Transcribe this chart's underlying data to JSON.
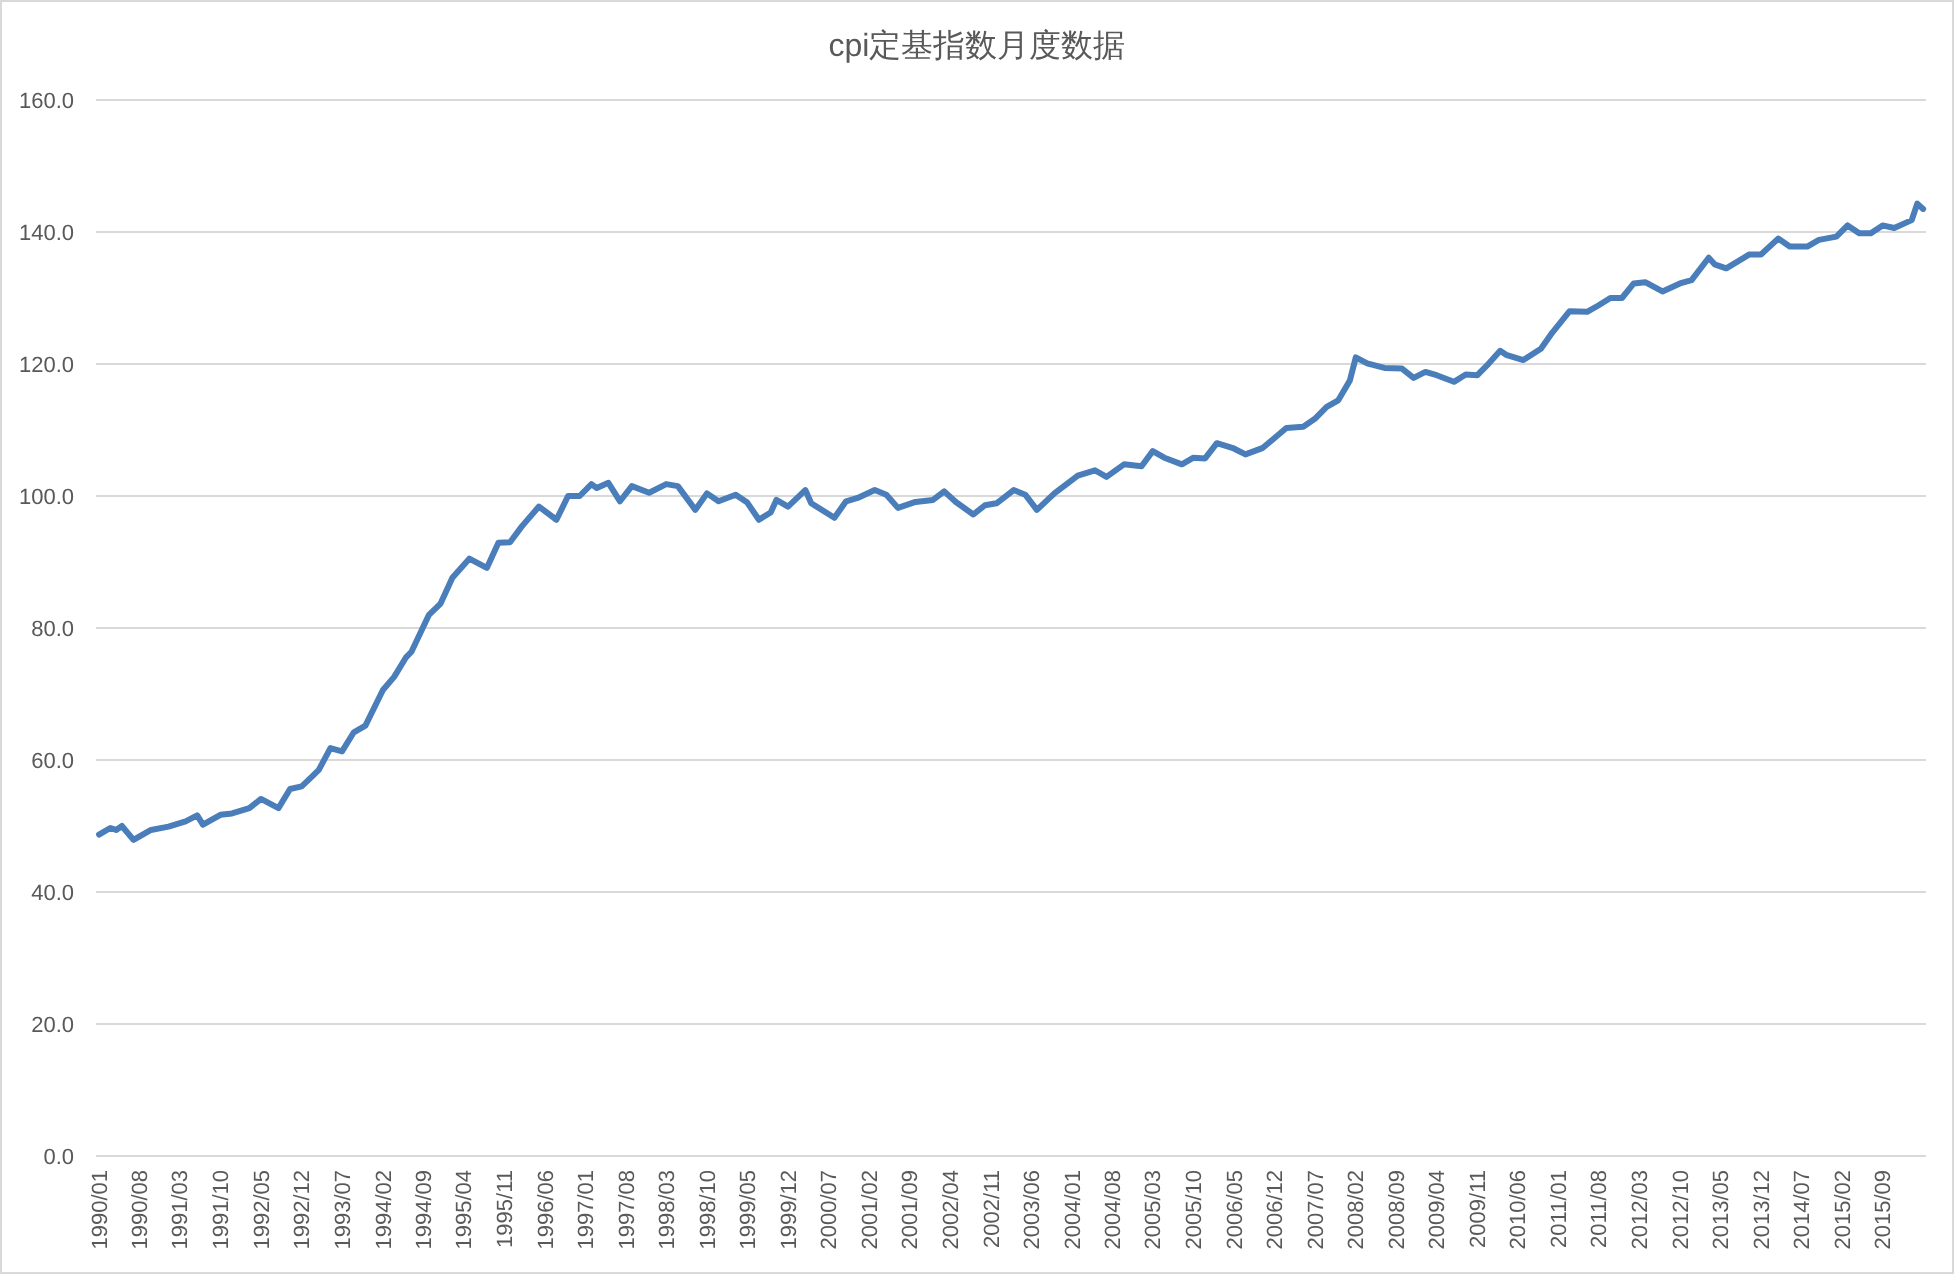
{
  "chart_data": {
    "type": "line",
    "title": "cpi定基指数月度数据",
    "x": [
      "1990-01",
      "1990-03",
      "1990-04",
      "1990-05",
      "1990-07",
      "1990-10",
      "1991-01",
      "1991-04",
      "1991-06",
      "1991-07",
      "1991-10",
      "1991-12",
      "1992-03",
      "1992-05",
      "1992-08",
      "1992-10",
      "1992-12",
      "1993-02",
      "1993-03",
      "1993-05",
      "1993-07",
      "1993-09",
      "1993-11",
      "1994-02",
      "1994-04",
      "1994-06",
      "1994-07",
      "1994-10",
      "1994-12",
      "1995-02",
      "1995-05",
      "1995-08",
      "1995-10",
      "1995-12",
      "1996-02",
      "1996-05",
      "1996-08",
      "1996-10",
      "1996-12",
      "1997-02",
      "1997-03",
      "1997-05",
      "1997-07",
      "1997-09",
      "1997-12",
      "1998-03",
      "1998-05",
      "1998-08",
      "1998-10",
      "1998-12",
      "1999-03",
      "1999-05",
      "1999-07",
      "1999-09",
      "1999-10",
      "1999-12",
      "2000-03",
      "2000-04",
      "2000-08",
      "2000-10",
      "2000-12",
      "2001-03",
      "2001-05",
      "2001-07",
      "2001-10",
      "2002-01",
      "2002-03",
      "2002-05",
      "2002-08",
      "2002-10",
      "2002-12",
      "2003-03",
      "2003-05",
      "2003-07",
      "2003-10",
      "2004-02",
      "2004-05",
      "2004-07",
      "2004-10",
      "2005-01",
      "2005-03",
      "2005-05",
      "2005-08",
      "2005-10",
      "2005-12",
      "2006-02",
      "2006-05",
      "2006-07",
      "2006-10",
      "2007-02",
      "2007-05",
      "2007-07",
      "2007-09",
      "2007-11",
      "2008-01",
      "2008-02",
      "2008-04",
      "2008-07",
      "2008-10",
      "2008-12",
      "2009-02",
      "2009-04",
      "2009-07",
      "2009-09",
      "2009-11",
      "2010-01",
      "2010-03",
      "2010-04",
      "2010-07",
      "2010-10",
      "2010-12",
      "2011-03",
      "2011-06",
      "2011-08",
      "2011-10",
      "2011-12",
      "2012-02",
      "2012-04",
      "2012-07",
      "2012-10",
      "2012-12",
      "2013-03",
      "2013-04",
      "2013-06",
      "2013-10",
      "2013-12",
      "2014-03",
      "2014-05",
      "2014-08",
      "2014-10",
      "2015-01",
      "2015-03",
      "2015-05",
      "2015-07",
      "2015-09",
      "2015-11",
      "2016-02",
      "2016-03",
      "2016-04"
    ],
    "series": [
      {
        "color": "#4a7ebb",
        "values": [
          48.7,
          49.7,
          49.4,
          50.0,
          47.9,
          49.4,
          49.9,
          50.7,
          51.6,
          50.2,
          51.7,
          51.9,
          52.7,
          54.1,
          52.7,
          55.6,
          56.0,
          57.7,
          58.5,
          61.8,
          61.3,
          64.2,
          65.2,
          70.6,
          72.6,
          75.5,
          76.4,
          82.0,
          83.7,
          87.6,
          90.5,
          89.1,
          92.9,
          93.0,
          95.4,
          98.4,
          96.4,
          100.0,
          100.0,
          101.8,
          101.2,
          102.0,
          99.2,
          101.5,
          100.5,
          101.8,
          101.5,
          97.9,
          100.4,
          99.2,
          100.2,
          99.0,
          96.4,
          97.5,
          99.4,
          98.4,
          100.9,
          98.9,
          96.7,
          99.2,
          99.7,
          100.9,
          100.2,
          98.2,
          99.1,
          99.4,
          100.7,
          99.1,
          97.2,
          98.6,
          98.9,
          100.9,
          100.2,
          97.9,
          100.4,
          103.1,
          103.9,
          102.9,
          104.8,
          104.5,
          106.8,
          105.8,
          104.8,
          105.8,
          105.7,
          108.0,
          107.2,
          106.3,
          107.3,
          110.3,
          110.5,
          111.7,
          113.5,
          114.5,
          117.5,
          121.0,
          120.1,
          119.4,
          119.3,
          117.9,
          118.8,
          118.3,
          117.3,
          118.4,
          118.3,
          120.1,
          122.0,
          121.4,
          120.6,
          122.3,
          124.8,
          128.0,
          127.9,
          128.9,
          130.0,
          130.0,
          132.2,
          132.4,
          131.0,
          132.2,
          132.7,
          136.1,
          135.1,
          134.5,
          136.6,
          136.6,
          139.0,
          137.8,
          137.8,
          138.8,
          139.3,
          141.0,
          139.8,
          139.8,
          141.0,
          140.6,
          141.8,
          144.3,
          143.5
        ]
      }
    ],
    "xlim": [
      "1989-12-16",
      "2016-04-16"
    ],
    "xticks": [
      {
        "value": "1990-01",
        "label": "1990/01"
      },
      {
        "value": "1990-08",
        "label": "1990/08"
      },
      {
        "value": "1991-03",
        "label": "1991/03"
      },
      {
        "value": "1991-10",
        "label": "1991/10"
      },
      {
        "value": "1992-05",
        "label": "1992/05"
      },
      {
        "value": "1992-12",
        "label": "1992/12"
      },
      {
        "value": "1993-07",
        "label": "1993/07"
      },
      {
        "value": "1994-02",
        "label": "1994/02"
      },
      {
        "value": "1994-09",
        "label": "1994/09"
      },
      {
        "value": "1995-04",
        "label": "1995/04"
      },
      {
        "value": "1995-11",
        "label": "1995/11"
      },
      {
        "value": "1996-06",
        "label": "1996/06"
      },
      {
        "value": "1997-01",
        "label": "1997/01"
      },
      {
        "value": "1997-08",
        "label": "1997/08"
      },
      {
        "value": "1998-03",
        "label": "1998/03"
      },
      {
        "value": "1998-10",
        "label": "1998/10"
      },
      {
        "value": "1999-05",
        "label": "1999/05"
      },
      {
        "value": "1999-12",
        "label": "1999/12"
      },
      {
        "value": "2000-07",
        "label": "2000/07"
      },
      {
        "value": "2001-02",
        "label": "2001/02"
      },
      {
        "value": "2001-09",
        "label": "2001/09"
      },
      {
        "value": "2002-04",
        "label": "2002/04"
      },
      {
        "value": "2002-11",
        "label": "2002/11"
      },
      {
        "value": "2003-06",
        "label": "2003/06"
      },
      {
        "value": "2004-01",
        "label": "2004/01"
      },
      {
        "value": "2004-08",
        "label": "2004/08"
      },
      {
        "value": "2005-03",
        "label": "2005/03"
      },
      {
        "value": "2005-10",
        "label": "2005/10"
      },
      {
        "value": "2006-05",
        "label": "2006/05"
      },
      {
        "value": "2006-12",
        "label": "2006/12"
      },
      {
        "value": "2007-07",
        "label": "2007/07"
      },
      {
        "value": "2008-02",
        "label": "2008/02"
      },
      {
        "value": "2008-09",
        "label": "2008/09"
      },
      {
        "value": "2009-04",
        "label": "2009/04"
      },
      {
        "value": "2009-11",
        "label": "2009/11"
      },
      {
        "value": "2010-06",
        "label": "2010/06"
      },
      {
        "value": "2011-01",
        "label": "2011/01"
      },
      {
        "value": "2011-08",
        "label": "2011/08"
      },
      {
        "value": "2012-03",
        "label": "2012/03"
      },
      {
        "value": "2012-10",
        "label": "2012/10"
      },
      {
        "value": "2013-05",
        "label": "2013/05"
      },
      {
        "value": "2013-12",
        "label": "2013/12"
      },
      {
        "value": "2014-07",
        "label": "2014/07"
      },
      {
        "value": "2015-02",
        "label": "2015/02"
      },
      {
        "value": "2015-09",
        "label": "2015/09"
      }
    ],
    "ylim": [
      0,
      160
    ],
    "yticks": [
      {
        "value": 0,
        "label": "0.0"
      },
      {
        "value": 20,
        "label": "20.0"
      },
      {
        "value": 40,
        "label": "40.0"
      },
      {
        "value": 60,
        "label": "60.0"
      },
      {
        "value": 80,
        "label": "80.0"
      },
      {
        "value": 100,
        "label": "100.0"
      },
      {
        "value": 120,
        "label": "120.0"
      },
      {
        "value": 140,
        "label": "140.0"
      },
      {
        "value": 160,
        "label": "160.0"
      }
    ],
    "grid": "y",
    "line_style": "solid"
  }
}
